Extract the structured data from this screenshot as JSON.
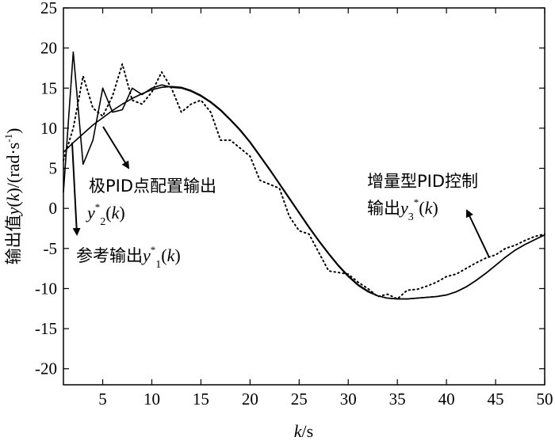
{
  "chart_data": {
    "type": "line",
    "xlabel": {
      "italic": "k",
      "normal": "/s"
    },
    "ylabel": {
      "prefix": "输出值",
      "italic_y": "y",
      "open": "(",
      "italic_k": "k",
      "close": ")/(rad·s",
      "sup": "-1",
      "end": ")"
    },
    "xlim": [
      1,
      50
    ],
    "ylim": [
      -22,
      25
    ],
    "xticks": [
      5,
      10,
      15,
      20,
      25,
      30,
      35,
      40,
      45,
      50
    ],
    "yticks": [
      -20,
      -15,
      -10,
      -5,
      0,
      5,
      10,
      15,
      20,
      25
    ],
    "grid": false,
    "series": [
      {
        "name": "参考输出y*1(k)",
        "style": "thin-solid",
        "x": [
          1,
          2,
          3,
          4,
          5,
          6,
          7,
          8,
          9,
          10,
          11,
          12,
          13,
          14,
          15,
          16,
          17,
          18,
          19,
          20,
          21,
          22,
          23,
          24,
          25,
          26,
          27,
          28,
          29,
          30,
          31,
          32,
          33,
          34,
          35,
          36,
          37,
          38,
          39,
          40,
          41,
          42,
          43,
          44,
          45,
          46,
          47,
          48,
          49,
          50
        ],
        "y": [
          7,
          8.2,
          9.3,
          10.4,
          11.3,
          12.2,
          13,
          13.7,
          14.3,
          14.8,
          15.1,
          15.2,
          15.1,
          14.7,
          14.1,
          13.3,
          12.3,
          11.1,
          9.8,
          8.3,
          6.6,
          4.9,
          3.1,
          1.3,
          -0.5,
          -2.3,
          -4,
          -5.6,
          -7.1,
          -8.4,
          -9.5,
          -10.3,
          -10.9,
          -11.2,
          -11.3,
          -11.3,
          -11.2,
          -11.1,
          -11,
          -10.8,
          -10.4,
          -9.8,
          -9,
          -8.1,
          -7.1,
          -6.1,
          -5.2,
          -4.5,
          -3.9,
          -3.3
        ]
      },
      {
        "name": "极PID点配置输出y*2(k)",
        "style": "jagged-solid",
        "x": [
          1,
          2,
          3,
          4,
          5,
          6,
          7,
          8,
          9,
          10,
          11,
          12,
          13,
          14,
          15,
          16,
          17,
          18,
          19,
          20,
          21,
          22,
          23,
          24,
          25,
          26,
          27,
          28,
          29,
          30,
          31,
          32,
          33,
          34,
          35,
          36,
          37,
          38,
          39,
          40,
          41,
          42,
          43,
          44,
          45,
          46,
          47,
          48,
          49,
          50
        ],
        "y": [
          2,
          19.5,
          5.5,
          8.5,
          15,
          12,
          12.3,
          15,
          14.2,
          15,
          15.4,
          15.1,
          15,
          14.6,
          14,
          13.2,
          12.2,
          11,
          9.7,
          8.2,
          6.5,
          4.8,
          3,
          1.2,
          -0.6,
          -2.4,
          -4.1,
          -5.7,
          -7.2,
          -8.5,
          -9.6,
          -10.4,
          -10.9,
          -11.2,
          -11.3,
          -11.3,
          -11.2,
          -11.1,
          -11,
          -10.8,
          -10.4,
          -9.8,
          -9,
          -8.1,
          -7.1,
          -6.1,
          -5.2,
          -4.5,
          -3.9,
          -3.3
        ]
      },
      {
        "name": "增量型PID控制输出y3*(k)",
        "style": "dotted",
        "x": [
          1,
          2,
          3,
          4,
          5,
          6,
          7,
          8,
          9,
          10,
          11,
          12,
          13,
          14,
          15,
          16,
          17,
          18,
          19,
          20,
          21,
          22,
          23,
          24,
          25,
          26,
          27,
          28,
          29,
          30,
          31,
          32,
          33,
          34,
          35,
          36,
          37,
          38,
          39,
          40,
          41,
          42,
          43,
          44,
          45,
          46,
          47,
          48,
          49,
          50
        ],
        "y": [
          6,
          10,
          16.5,
          12.5,
          11.5,
          14,
          18,
          13.5,
          13,
          14.5,
          17,
          15,
          12,
          13,
          13.5,
          12,
          8.5,
          8.5,
          7.5,
          6.5,
          3.5,
          3,
          2.5,
          -1,
          -2.8,
          -3.2,
          -5.5,
          -7.8,
          -8,
          -8.2,
          -9.2,
          -10,
          -11,
          -10.7,
          -11.3,
          -10.2,
          -10.1,
          -9.7,
          -9.2,
          -8.5,
          -8.2,
          -7.5,
          -6.8,
          -6.2,
          -5.8,
          -5,
          -4.6,
          -4,
          -3.5,
          -3.2
        ]
      }
    ],
    "annotations": [
      {
        "id": "y2",
        "line1": "极PID点配置输出",
        "y": "y",
        "sup": "*",
        "sub": "2",
        "open": "(",
        "k": "k",
        "close": ")"
      },
      {
        "id": "y1",
        "prefix": "参考输出",
        "y": "y",
        "sup": "*",
        "sub": "1",
        "open": "(",
        "k": "k",
        "close": ")"
      },
      {
        "id": "y3",
        "line1": "增量型PID控制",
        "prefix": "输出",
        "y": "y",
        "sub": "3",
        "sup": "*",
        "open": "(",
        "k": "k",
        "close": ")"
      }
    ]
  }
}
